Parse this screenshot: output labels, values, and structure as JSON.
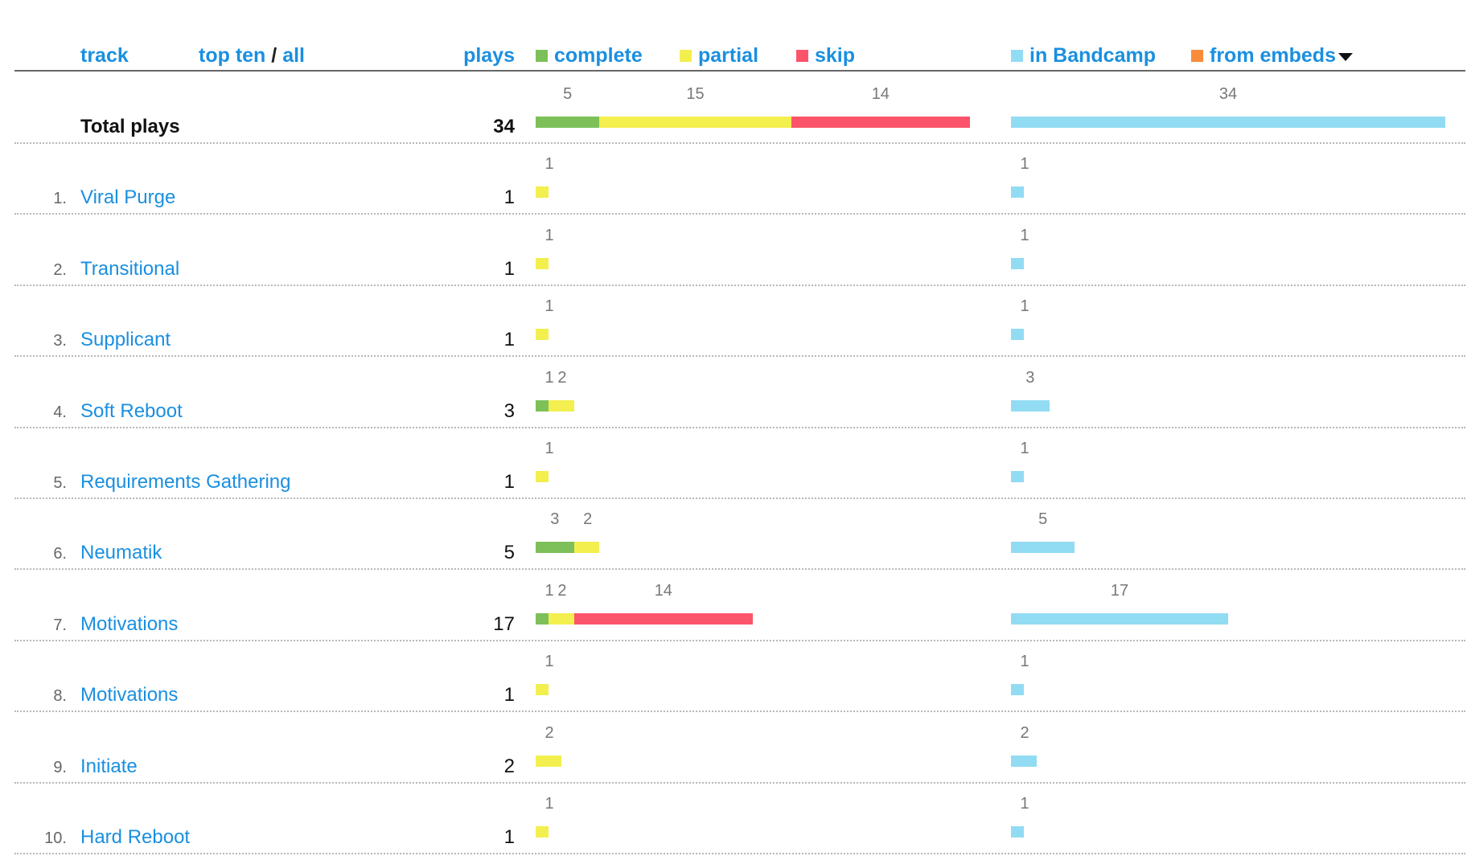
{
  "header": {
    "track_label": "track",
    "top_ten_label": "top ten",
    "separator": "/",
    "all_label": "all",
    "plays_label": "plays"
  },
  "legend": {
    "complete": {
      "label": "complete",
      "color": "#7dc05a"
    },
    "partial": {
      "label": "partial",
      "color": "#f2ef4e"
    },
    "skip": {
      "label": "skip",
      "color": "#fc546b"
    },
    "in_bandcamp": {
      "label": "in Bandcamp",
      "color": "#92dcf3"
    },
    "from_embeds": {
      "label": "from embeds",
      "color": "#f98c3a"
    },
    "dropdown_icon": "caret-down-icon"
  },
  "total": {
    "label": "Total plays",
    "plays": "34",
    "complete": 5,
    "partial": 15,
    "skip": 14,
    "in_bandcamp": 34
  },
  "tracks": [
    {
      "rank": "1.",
      "name": "Viral Purge",
      "plays": "1",
      "complete": 0,
      "partial": 1,
      "skip": 0,
      "in_bandcamp": 1
    },
    {
      "rank": "2.",
      "name": "Transitional",
      "plays": "1",
      "complete": 0,
      "partial": 1,
      "skip": 0,
      "in_bandcamp": 1
    },
    {
      "rank": "3.",
      "name": "Supplicant",
      "plays": "1",
      "complete": 0,
      "partial": 1,
      "skip": 0,
      "in_bandcamp": 1
    },
    {
      "rank": "4.",
      "name": "Soft Reboot",
      "plays": "3",
      "complete": 1,
      "partial": 2,
      "skip": 0,
      "in_bandcamp": 3
    },
    {
      "rank": "5.",
      "name": "Requirements Gathering",
      "plays": "1",
      "complete": 0,
      "partial": 1,
      "skip": 0,
      "in_bandcamp": 1
    },
    {
      "rank": "6.",
      "name": "Neumatik",
      "plays": "5",
      "complete": 3,
      "partial": 2,
      "skip": 0,
      "in_bandcamp": 5
    },
    {
      "rank": "7.",
      "name": "Motivations",
      "plays": "17",
      "complete": 1,
      "partial": 2,
      "skip": 14,
      "in_bandcamp": 17
    },
    {
      "rank": "8.",
      "name": "Motivations",
      "plays": "1",
      "complete": 0,
      "partial": 1,
      "skip": 0,
      "in_bandcamp": 1
    },
    {
      "rank": "9.",
      "name": "Initiate",
      "plays": "2",
      "complete": 0,
      "partial": 2,
      "skip": 0,
      "in_bandcamp": 2
    },
    {
      "rank": "10.",
      "name": "Hard Reboot",
      "plays": "1",
      "complete": 0,
      "partial": 1,
      "skip": 0,
      "in_bandcamp": 1
    }
  ]
}
